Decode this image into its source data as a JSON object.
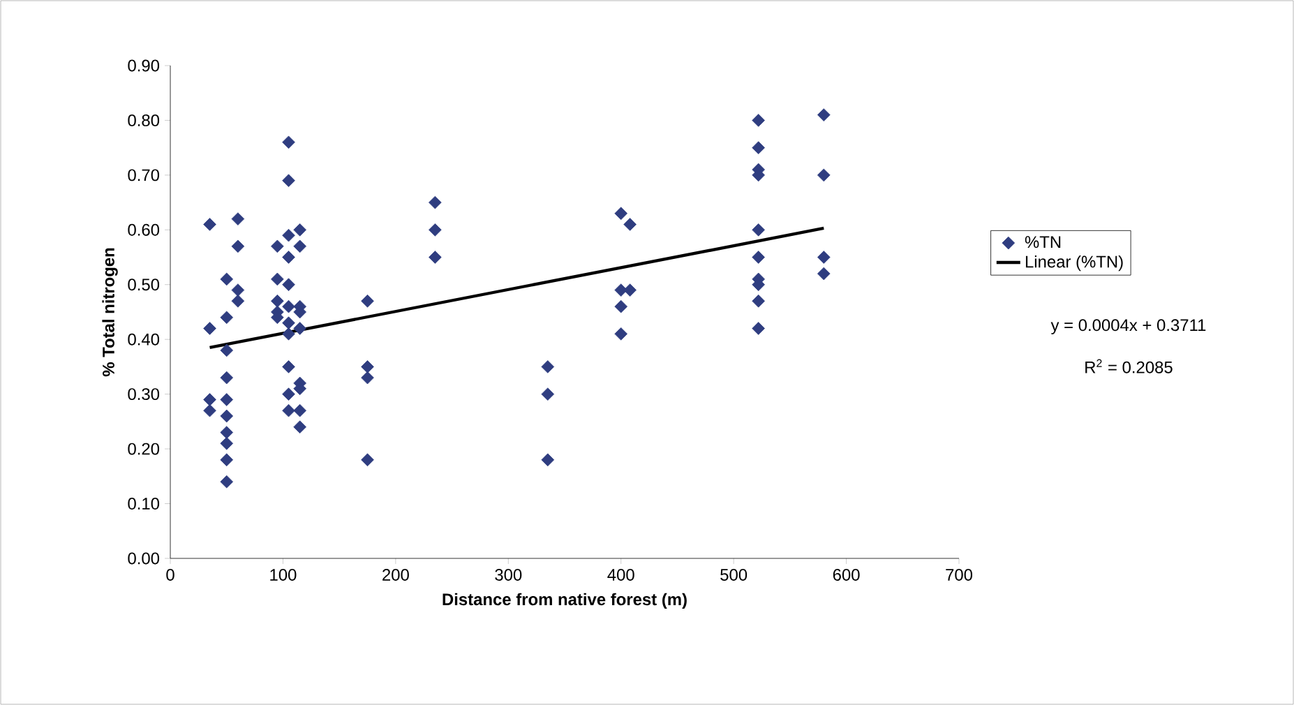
{
  "chart_data": {
    "type": "scatter",
    "xlabel": "Distance from native forest (m)",
    "ylabel": "% Total nitrogen",
    "xlim": [
      0,
      700
    ],
    "xticks": [
      0,
      100,
      200,
      300,
      400,
      500,
      600,
      700
    ],
    "ylim": [
      0,
      0.9
    ],
    "yticks": [
      {
        "value": 0,
        "label": "0.00"
      },
      {
        "value": 0.1,
        "label": "0.10"
      },
      {
        "value": 0.2,
        "label": "0.20"
      },
      {
        "value": 0.3,
        "label": "0.30"
      },
      {
        "value": 0.4,
        "label": "0.40"
      },
      {
        "value": 0.5,
        "label": "0.50"
      },
      {
        "value": 0.6,
        "label": "0.60"
      },
      {
        "value": 0.7,
        "label": "0.70"
      },
      {
        "value": 0.8,
        "label": "0.80"
      },
      {
        "value": 0.9,
        "label": "0.90"
      }
    ],
    "grid": false,
    "legend": "right",
    "marker": "diamond",
    "series": [
      {
        "name": "%TN",
        "color": "#2f3d80",
        "x": [
          35,
          35,
          35,
          35,
          50,
          50,
          50,
          50,
          50,
          50,
          50,
          50,
          50,
          50,
          60,
          60,
          60,
          60,
          95,
          95,
          95,
          95,
          95,
          105,
          105,
          105,
          105,
          105,
          105,
          105,
          105,
          105,
          105,
          105,
          115,
          115,
          115,
          115,
          115,
          115,
          115,
          115,
          115,
          175,
          175,
          175,
          175,
          235,
          235,
          235,
          335,
          335,
          335,
          400,
          400,
          400,
          400,
          408,
          408,
          522,
          522,
          522,
          522,
          522,
          522,
          522,
          522,
          522,
          522,
          580,
          580,
          580,
          580
        ],
        "values": [
          0.61,
          0.42,
          0.29,
          0.27,
          0.51,
          0.44,
          0.38,
          0.33,
          0.29,
          0.26,
          0.23,
          0.21,
          0.18,
          0.14,
          0.62,
          0.57,
          0.49,
          0.47,
          0.57,
          0.51,
          0.47,
          0.45,
          0.44,
          0.76,
          0.69,
          0.59,
          0.55,
          0.5,
          0.46,
          0.43,
          0.41,
          0.35,
          0.3,
          0.27,
          0.6,
          0.57,
          0.46,
          0.45,
          0.42,
          0.32,
          0.31,
          0.27,
          0.24,
          0.47,
          0.35,
          0.33,
          0.18,
          0.65,
          0.6,
          0.55,
          0.35,
          0.3,
          0.18,
          0.63,
          0.49,
          0.46,
          0.41,
          0.61,
          0.49,
          0.8,
          0.75,
          0.71,
          0.7,
          0.6,
          0.55,
          0.51,
          0.5,
          0.47,
          0.42,
          0.81,
          0.7,
          0.55,
          0.52
        ]
      },
      {
        "name": "Linear (%TN)",
        "type": "line",
        "color": "#000000",
        "marker": "none",
        "line_style": "solid",
        "x": [
          35,
          580
        ],
        "values": [
          0.385,
          0.603
        ]
      }
    ],
    "annotations": [
      "y = 0.0004x + 0.3711",
      "R$^{2}$ = 0.2085"
    ]
  }
}
